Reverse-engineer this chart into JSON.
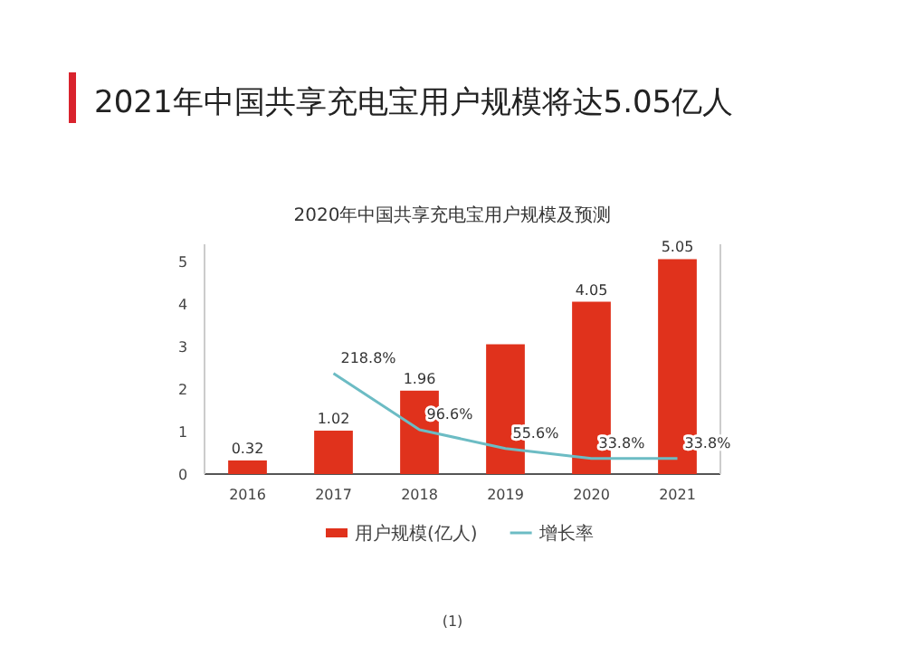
{
  "chart_data": {
    "type": "bar",
    "title": "2021年中国共享充电宝用户规模将达5.05亿人",
    "subtitle": "2020年中国共享充电宝用户规模及预测",
    "categories": [
      "2016",
      "2017",
      "2018",
      "2019",
      "2020",
      "2021"
    ],
    "series": [
      {
        "name": "用户规模(亿人)",
        "color": "#e0321c",
        "values": [
          0.32,
          1.02,
          1.96,
          3.05,
          4.05,
          5.05
        ],
        "value_labels": [
          "0.32",
          "1.02",
          "1.96",
          null,
          "4.05",
          "5.05"
        ]
      },
      {
        "name": "增长率",
        "type": "line",
        "axis": "y2",
        "color": "#6cbcc4",
        "values": [
          null,
          218.8,
          96.6,
          55.6,
          33.8,
          33.8
        ],
        "value_labels": [
          null,
          "218.8%",
          "96.6%",
          "55.6%",
          "33.8%",
          "33.8%"
        ]
      }
    ],
    "ylim": [
      0,
      5.4
    ],
    "yticks": [
      0,
      1,
      2,
      3,
      4,
      5
    ],
    "y2lim": [
      0,
      500
    ],
    "legend": "bottom",
    "annotations": [
      "(1)"
    ]
  }
}
